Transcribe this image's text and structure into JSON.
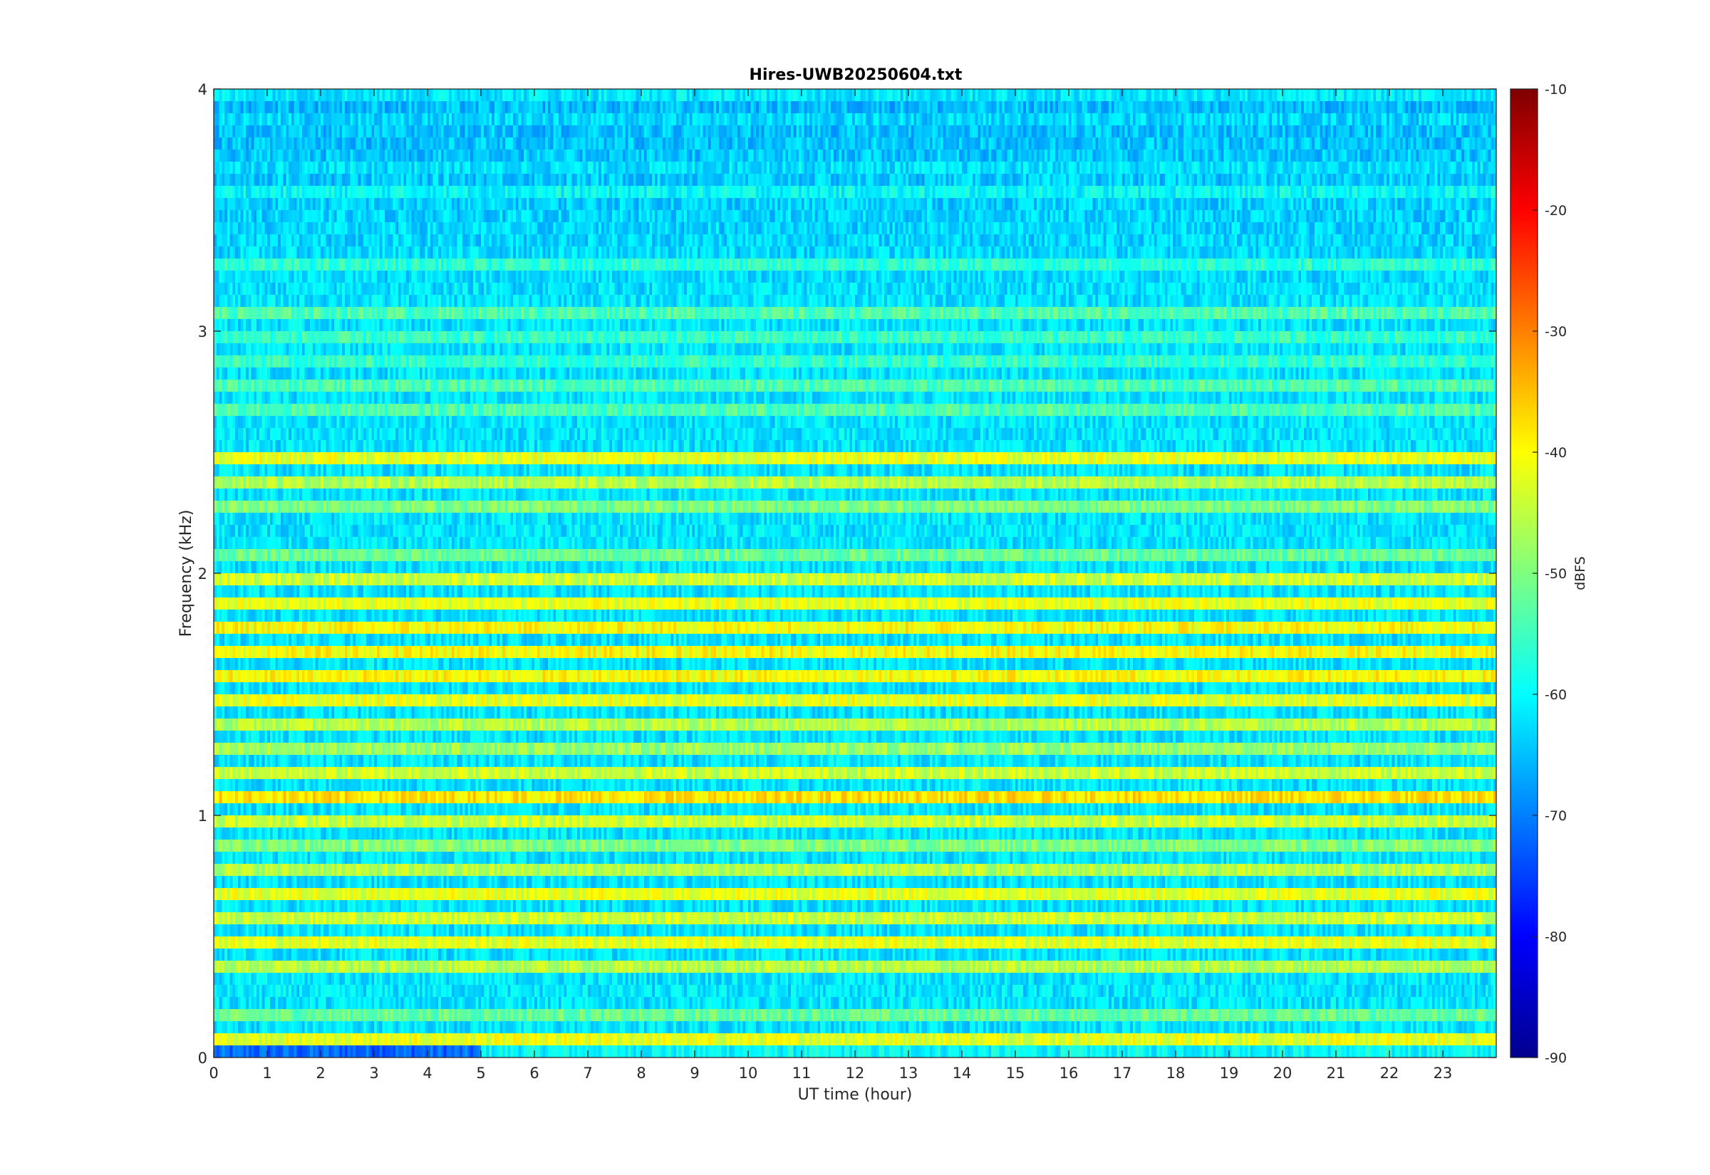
{
  "chart_data": {
    "type": "heatmap",
    "title": "Hires-UWB20250604.txt",
    "xlabel": "UT time (hour)",
    "ylabel": "Frequency (kHz)",
    "xlim": [
      0,
      24
    ],
    "ylim": [
      0,
      4
    ],
    "xticks": [
      "0",
      "1",
      "2",
      "3",
      "4",
      "5",
      "6",
      "7",
      "8",
      "9",
      "10",
      "11",
      "12",
      "13",
      "14",
      "15",
      "16",
      "17",
      "18",
      "19",
      "20",
      "21",
      "22",
      "23"
    ],
    "yticks": [
      "0",
      "1",
      "2",
      "3",
      "4"
    ],
    "colorbar": {
      "label": "dBFS",
      "colormap": "jet",
      "range": [
        -90,
        -10
      ],
      "ticks": [
        "-90",
        "-80",
        "-70",
        "-60",
        "-50",
        "-40",
        "-30",
        "-20",
        "-10"
      ]
    },
    "bands_khz_dbfs": [
      {
        "f": 0.05,
        "level": -42,
        "note": "stronger after 5 h"
      },
      {
        "f": 0.15,
        "level": -52
      },
      {
        "f": 0.35,
        "level": -46
      },
      {
        "f": 0.45,
        "level": -42
      },
      {
        "f": 0.55,
        "level": -44
      },
      {
        "f": 0.65,
        "level": -42
      },
      {
        "f": 0.75,
        "level": -46
      },
      {
        "f": 0.85,
        "level": -50
      },
      {
        "f": 0.95,
        "level": -44
      },
      {
        "f": 1.05,
        "level": -38
      },
      {
        "f": 1.15,
        "level": -44
      },
      {
        "f": 1.25,
        "level": -48
      },
      {
        "f": 1.35,
        "level": -46
      },
      {
        "f": 1.45,
        "level": -42
      },
      {
        "f": 1.55,
        "level": -40
      },
      {
        "f": 1.65,
        "level": -40
      },
      {
        "f": 1.75,
        "level": -40
      },
      {
        "f": 1.85,
        "level": -42
      },
      {
        "f": 1.95,
        "level": -44
      },
      {
        "f": 2.05,
        "level": -52
      },
      {
        "f": 2.25,
        "level": -50
      },
      {
        "f": 2.35,
        "level": -46
      },
      {
        "f": 2.45,
        "level": -42
      },
      {
        "f": 2.65,
        "level": -54
      },
      {
        "f": 2.75,
        "level": -54
      },
      {
        "f": 2.85,
        "level": -56
      },
      {
        "f": 2.95,
        "level": -56
      },
      {
        "f": 3.05,
        "level": -54
      },
      {
        "f": 3.25,
        "level": -56
      },
      {
        "f": 3.55,
        "level": -58
      },
      {
        "f": 3.65,
        "level": -60
      },
      {
        "f": 3.85,
        "level": -60
      },
      {
        "f": 3.95,
        "level": -58
      }
    ]
  }
}
